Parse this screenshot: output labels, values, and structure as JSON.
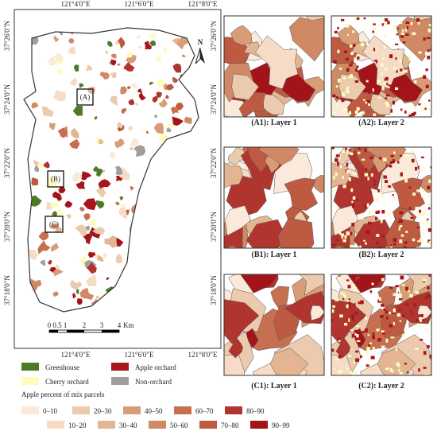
{
  "map": {
    "lon_labels": [
      "121°4'0\"E",
      "121°6'0\"E",
      "121°8'0\"E"
    ],
    "lat_labels": [
      "37°26'0\"N",
      "37°24'0\"N",
      "37°22'0\"N",
      "37°20'0\"N",
      "37°18'0\"N"
    ],
    "insets": [
      "(A)",
      "(B)",
      "(C)"
    ],
    "north": "N",
    "scale_labels": [
      "0 0.5 1",
      "2",
      "3",
      "4"
    ],
    "scale_unit": "Km"
  },
  "panels": [
    {
      "caption": "(A1): Layer 1"
    },
    {
      "caption": "(A2): Layer 2"
    },
    {
      "caption": "(B1): Layer 1"
    },
    {
      "caption": "(B2): Layer 2"
    },
    {
      "caption": "(C1): Layer 1"
    },
    {
      "caption": "(C2): Layer 2"
    }
  ],
  "legend": {
    "items": [
      {
        "label": "Greenhouse",
        "color": "#4e7a28"
      },
      {
        "label": "Apple orchard",
        "color": "#a8161b"
      },
      {
        "label": "Cherry orchard",
        "color": "#fdfbc0"
      },
      {
        "label": "Non-orchard",
        "color": "#9e9e9e"
      }
    ],
    "title": "Apple percent of mix parcels",
    "classes": [
      {
        "label": "0–10",
        "color": "#fbeadb"
      },
      {
        "label": "10–20",
        "color": "#f6dcc6"
      },
      {
        "label": "20–30",
        "color": "#eccaae"
      },
      {
        "label": "30–40",
        "color": "#e4b592"
      },
      {
        "label": "40–50",
        "color": "#d89c77"
      },
      {
        "label": "50–60",
        "color": "#cf8a65"
      },
      {
        "label": "60–70",
        "color": "#c76f51"
      },
      {
        "label": "70–80",
        "color": "#bd5a41"
      },
      {
        "label": "80–90",
        "color": "#b0352e"
      },
      {
        "label": "90–99",
        "color": "#a3141a"
      }
    ]
  }
}
